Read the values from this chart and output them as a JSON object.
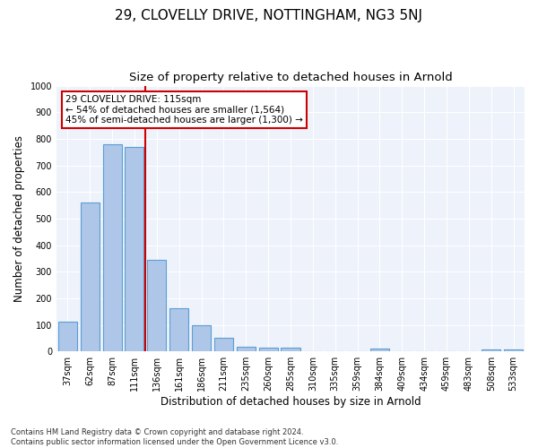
{
  "title": "29, CLOVELLY DRIVE, NOTTINGHAM, NG3 5NJ",
  "subtitle": "Size of property relative to detached houses in Arnold",
  "xlabel": "Distribution of detached houses by size in Arnold",
  "ylabel": "Number of detached properties",
  "categories": [
    "37sqm",
    "62sqm",
    "87sqm",
    "111sqm",
    "136sqm",
    "161sqm",
    "186sqm",
    "211sqm",
    "235sqm",
    "260sqm",
    "285sqm",
    "310sqm",
    "335sqm",
    "359sqm",
    "384sqm",
    "409sqm",
    "434sqm",
    "459sqm",
    "483sqm",
    "508sqm",
    "533sqm"
  ],
  "values": [
    112,
    560,
    780,
    770,
    343,
    163,
    98,
    52,
    18,
    14,
    14,
    0,
    0,
    0,
    10,
    0,
    0,
    0,
    0,
    8,
    8
  ],
  "bar_color": "#aec6e8",
  "bar_edge_color": "#5a9fd4",
  "vline_color": "#cc0000",
  "vline_pos": 3.5,
  "annotation_text": "29 CLOVELLY DRIVE: 115sqm\n← 54% of detached houses are smaller (1,564)\n45% of semi-detached houses are larger (1,300) →",
  "annotation_box_color": "#cc0000",
  "ylim": [
    0,
    1000
  ],
  "yticks": [
    0,
    100,
    200,
    300,
    400,
    500,
    600,
    700,
    800,
    900,
    1000
  ],
  "footnote": "Contains HM Land Registry data © Crown copyright and database right 2024.\nContains public sector information licensed under the Open Government Licence v3.0.",
  "bg_color": "#eef2fa",
  "title_fontsize": 11,
  "subtitle_fontsize": 9.5,
  "annotation_fontsize": 7.5,
  "ylabel_fontsize": 8.5,
  "xlabel_fontsize": 8.5,
  "tick_fontsize": 7,
  "footnote_fontsize": 6
}
